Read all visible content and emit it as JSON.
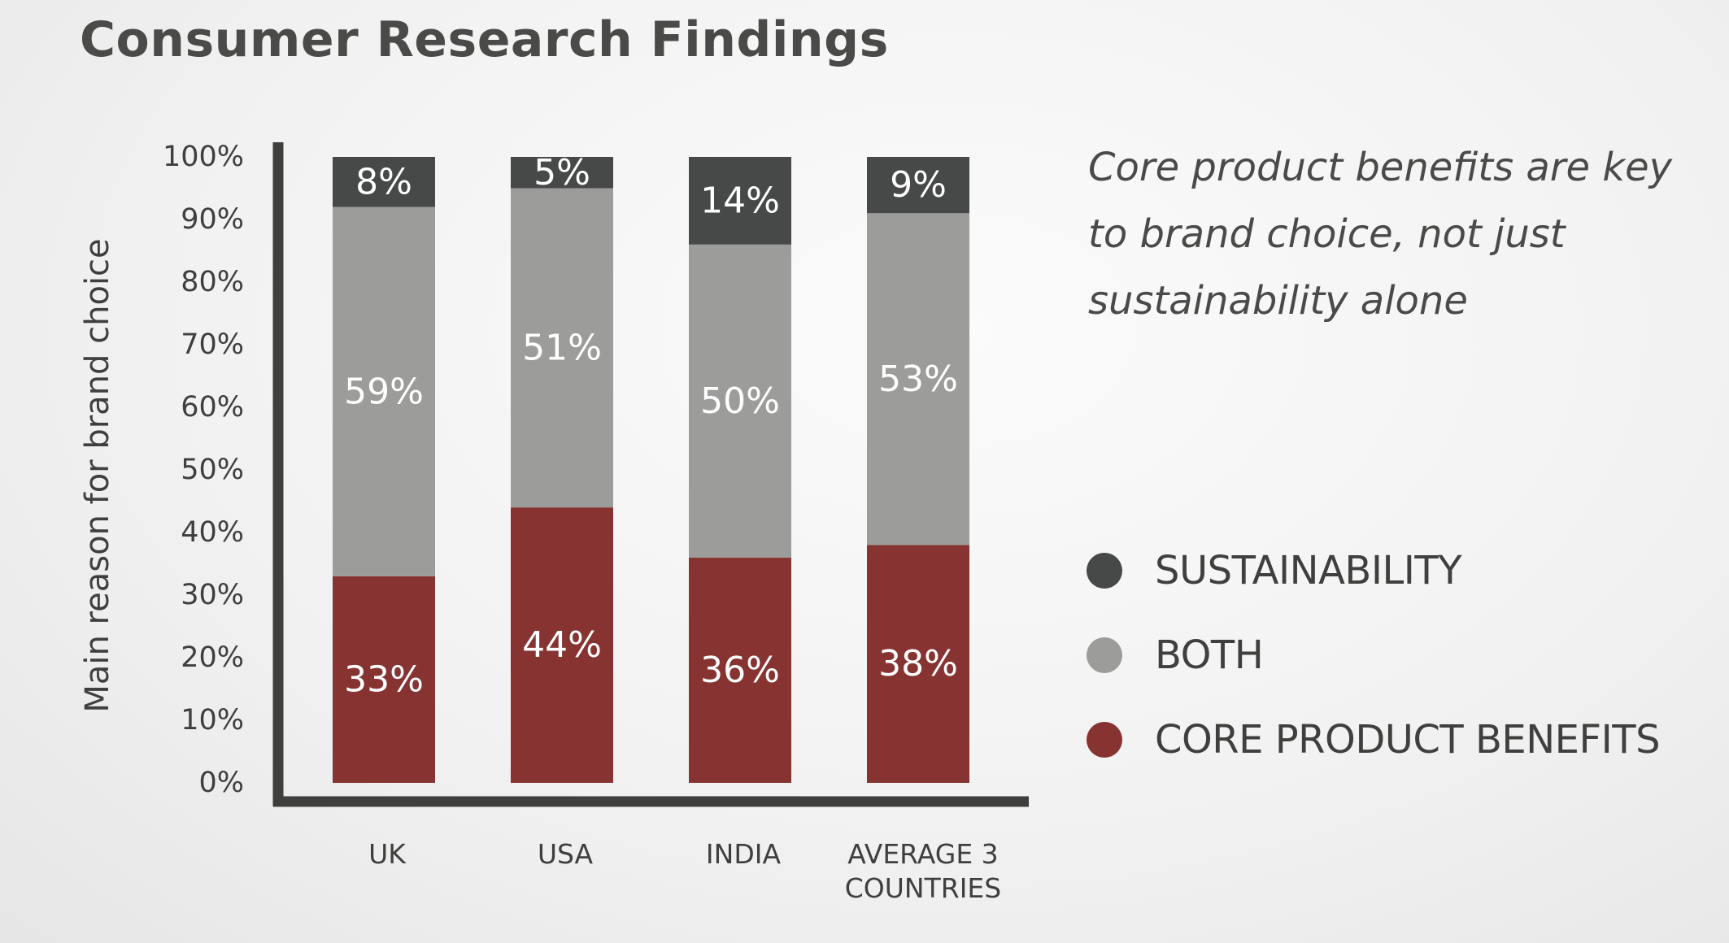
{
  "title": "Consumer Research Findings",
  "annotation": "Core product benefits are key to brand choice, not just sustainability alone",
  "legend": [
    {
      "label": "SUSTAINABILITY",
      "color": "#474848"
    },
    {
      "label": "BOTH",
      "color": "#9c9d9b"
    },
    {
      "label": "CORE PRODUCT BENEFITS",
      "color": "#863332"
    }
  ],
  "chart_data": {
    "type": "bar",
    "stacked": true,
    "ylabel": "Main reason for brand choice",
    "ylim": [
      0,
      100
    ],
    "yticks": [
      "0%",
      "10%",
      "20%",
      "30%",
      "40%",
      "50%",
      "60%",
      "70%",
      "80%",
      "90%",
      "100%"
    ],
    "categories": [
      [
        "UK"
      ],
      [
        "USA"
      ],
      [
        "INDIA"
      ],
      [
        "AVERAGE 3",
        "COUNTRIES"
      ]
    ],
    "series": [
      {
        "name": "CORE PRODUCT BENEFITS",
        "color": "#863332",
        "values": [
          33,
          44,
          36,
          38
        ],
        "labels": [
          "33%",
          "44%",
          "36%",
          "38%"
        ]
      },
      {
        "name": "BOTH",
        "color": "#9c9d9b",
        "values": [
          59,
          51,
          50,
          53
        ],
        "labels": [
          "59%",
          "51%",
          "50%",
          "53%"
        ]
      },
      {
        "name": "SUSTAINABILITY",
        "color": "#474848",
        "values": [
          8,
          5,
          14,
          9
        ],
        "labels": [
          "8%",
          "5%",
          "14%",
          "9%"
        ]
      }
    ],
    "grid": false,
    "legend_position": "right"
  }
}
